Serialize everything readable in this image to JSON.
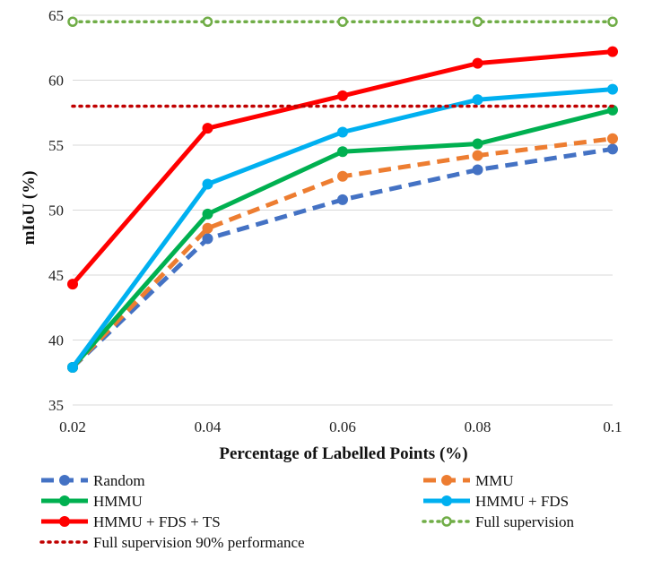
{
  "chart_data": {
    "type": "line",
    "xlabel": "Percentage of Labelled Points (%)",
    "ylabel": "mIoU (%)",
    "x": [
      0.02,
      0.04,
      0.06,
      0.08,
      0.1
    ],
    "x_tick_labels": [
      "0.02",
      "0.04",
      "0.06",
      "0.08",
      "0.1"
    ],
    "ylim": [
      35,
      65
    ],
    "y_ticks": [
      35,
      40,
      45,
      50,
      55,
      60,
      65
    ],
    "grid": true,
    "legend_position": "bottom",
    "series": [
      {
        "name": "Random",
        "values": [
          37.9,
          47.8,
          50.8,
          53.1,
          54.7
        ],
        "color": "#4472c4",
        "style": "dashed",
        "marker": "circle"
      },
      {
        "name": "MMU",
        "values": [
          37.9,
          48.6,
          52.6,
          54.2,
          55.5
        ],
        "color": "#ed7d31",
        "style": "dashed",
        "marker": "circle"
      },
      {
        "name": "HMMU",
        "values": [
          37.9,
          49.7,
          54.5,
          55.1,
          57.7
        ],
        "color": "#00b050",
        "style": "solid",
        "marker": "circle"
      },
      {
        "name": "HMMU + FDS",
        "values": [
          37.9,
          52.0,
          56.0,
          58.5,
          59.3
        ],
        "color": "#00b0f0",
        "style": "solid",
        "marker": "circle"
      },
      {
        "name": "HMMU + FDS + TS",
        "values": [
          44.3,
          56.3,
          58.8,
          61.3,
          62.2
        ],
        "color": "#ff0000",
        "style": "solid",
        "marker": "circle"
      },
      {
        "name": "Full supervision",
        "values": [
          64.5,
          64.5,
          64.5,
          64.5,
          64.5
        ],
        "color": "#70ad47",
        "style": "dotted",
        "marker": "open-circle"
      },
      {
        "name": "Full supervision 90% performance",
        "values": [
          58.0,
          58.0,
          58.0,
          58.0,
          58.0
        ],
        "color": "#c00000",
        "style": "dotted",
        "marker": "none"
      }
    ]
  }
}
